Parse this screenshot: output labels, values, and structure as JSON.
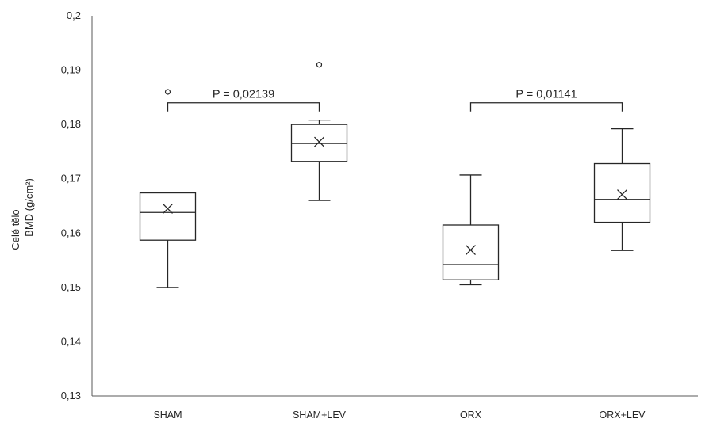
{
  "chart_data": {
    "type": "box",
    "ylabel_line1": "Celé tělo",
    "ylabel_line2": "BMD (g/cm²)",
    "ylim": [
      0.13,
      0.2
    ],
    "y_ticks": [
      "0,2",
      "0,19",
      "0,18",
      "0,17",
      "0,16",
      "0,15",
      "0,14",
      "0,13"
    ],
    "y_tick_values": [
      0.2,
      0.19,
      0.18,
      0.17,
      0.16,
      0.15,
      0.14,
      0.13
    ],
    "grid": false,
    "groups": [
      {
        "label": "SHAM",
        "min": 0.15,
        "q1": 0.1587,
        "median": 0.1638,
        "q3": 0.1674,
        "max": 0.1674,
        "mean": 0.1645,
        "outliers": [
          0.186
        ]
      },
      {
        "label": "SHAM+LEV",
        "min": 0.166,
        "q1": 0.1732,
        "median": 0.1765,
        "q3": 0.18,
        "max": 0.1808,
        "mean": 0.1768,
        "outliers": [
          0.191
        ]
      },
      {
        "label": "ORX",
        "min": 0.1505,
        "q1": 0.1514,
        "median": 0.1542,
        "q3": 0.1615,
        "max": 0.1707,
        "mean": 0.1569,
        "outliers": []
      },
      {
        "label": "ORX+LEV",
        "min": 0.1568,
        "q1": 0.162,
        "median": 0.1662,
        "q3": 0.1728,
        "max": 0.1792,
        "mean": 0.1671,
        "outliers": []
      }
    ],
    "annotations": [
      {
        "text": "P = 0,02139",
        "from_group": 0,
        "to_group": 1,
        "y": 0.184
      },
      {
        "text": "P = 0,01141",
        "from_group": 2,
        "to_group": 3,
        "y": 0.184
      }
    ]
  }
}
